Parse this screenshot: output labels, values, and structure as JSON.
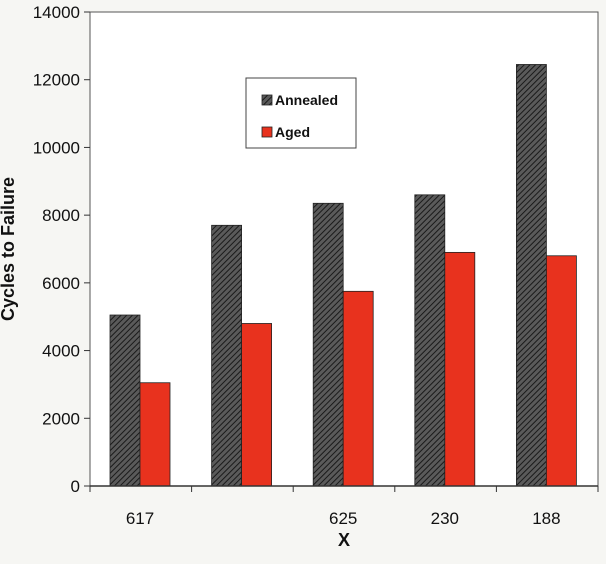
{
  "chart_data": {
    "type": "bar",
    "categories": [
      "617",
      "",
      "625",
      "230",
      "188"
    ],
    "series": [
      {
        "name": "Annealed",
        "values": [
          5050,
          7700,
          8350,
          8600,
          12450
        ],
        "color": "#3a3a3a",
        "pattern": "hatched"
      },
      {
        "name": "Aged",
        "values": [
          3050,
          4800,
          5750,
          6900,
          6800
        ],
        "color": "#e8321e",
        "pattern": "solid"
      }
    ],
    "xlabel": "X",
    "ylabel": "Cycles to Failure",
    "ylim": [
      0,
      14000
    ],
    "yticks": [
      "0",
      "2000",
      "4000",
      "6000",
      "8000",
      "10000",
      "12000",
      "14000"
    ],
    "grid": false,
    "legend_position": "top-center"
  }
}
